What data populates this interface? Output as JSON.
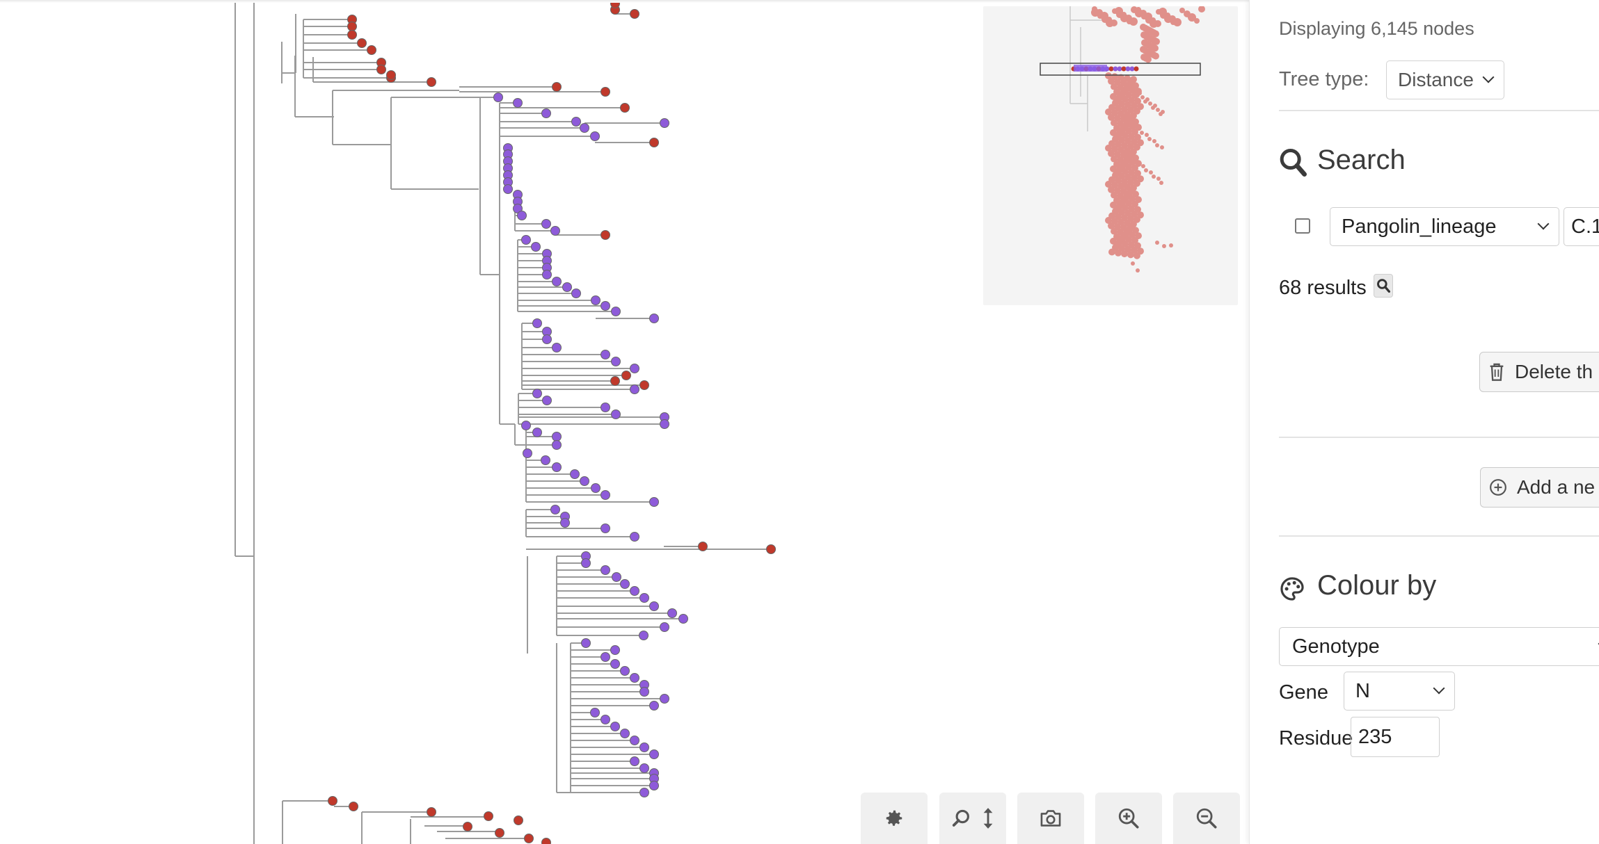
{
  "sidebar": {
    "nodes_count": "Displaying 6,145 nodes",
    "tree_type_label": "Tree type:",
    "tree_type_value": "Distance",
    "search": {
      "heading": "Search",
      "field_value": "Pangolin_lineage",
      "value_text": "C.1.",
      "results": "68 results",
      "delete_label": "Delete th",
      "add_label": "Add a ne"
    },
    "colour": {
      "heading": "Colour by",
      "colour_by_value": "Genotype",
      "gene_label": "Gene",
      "gene_value": "N",
      "residue_label": "Residue",
      "residue_value": "235"
    }
  },
  "toolbar": {
    "buttons": [
      "settings-icon",
      "zoom-vertical-icon",
      "camera-icon",
      "zoom-in-icon",
      "zoom-out-icon"
    ]
  },
  "colors": {
    "red_node": "#c0392b",
    "purple_node": "#8e5bd9",
    "branch": "#9a9a9a",
    "minimap_nodes": "#e0908a",
    "minimap_bg": "#f4f4f4"
  }
}
